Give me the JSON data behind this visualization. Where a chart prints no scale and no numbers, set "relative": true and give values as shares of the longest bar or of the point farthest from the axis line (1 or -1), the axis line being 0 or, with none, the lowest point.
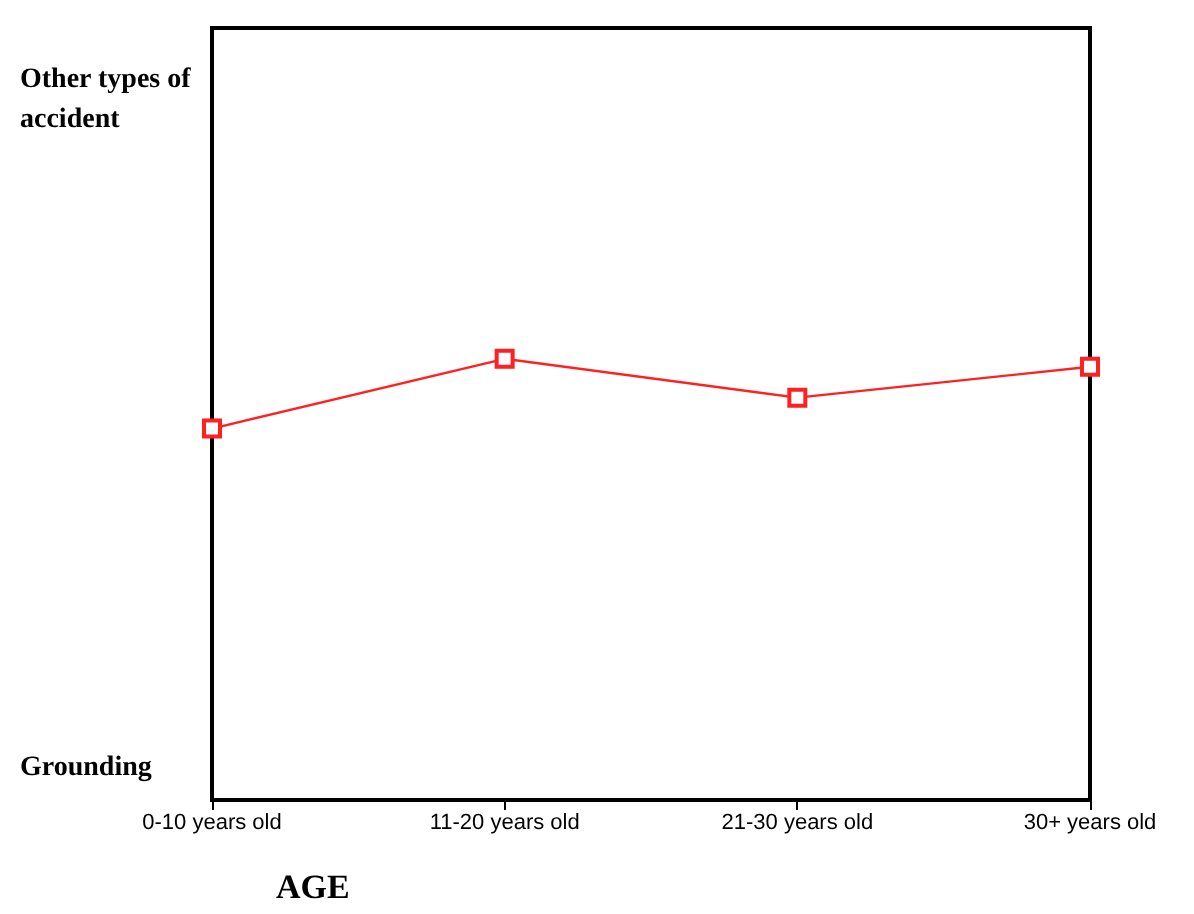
{
  "chart_data": {
    "type": "line",
    "xlabel": "AGE",
    "relative": true,
    "categories": [
      "0-10 years old",
      "11-20 years old",
      "21-30 years old",
      "30+ years old"
    ],
    "series": [
      {
        "color": "#ff2020",
        "values": [
          0.842,
          1,
          0.912,
          0.982
        ]
      }
    ],
    "annotations": [
      "Other types of accident",
      "Grounding"
    ],
    "marker": "square"
  }
}
